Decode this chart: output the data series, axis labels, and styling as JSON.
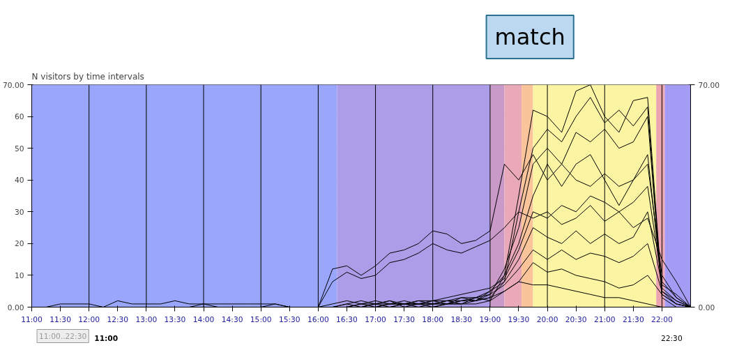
{
  "chart_data": {
    "type": "line",
    "title": "N visitors by time intervals",
    "annotations": [
      "match",
      "11:00..22:30",
      "11:00",
      "22:30"
    ],
    "x": [
      11,
      11.25,
      11.5,
      11.75,
      12,
      12.25,
      12.5,
      12.75,
      13,
      13.25,
      13.5,
      13.75,
      14,
      14.25,
      14.5,
      14.75,
      15,
      15.25,
      15.5,
      15.75,
      16,
      16.25,
      16.5,
      16.75,
      17,
      17.25,
      17.5,
      17.75,
      18,
      18.25,
      18.5,
      18.75,
      19,
      19.25,
      19.5,
      19.75,
      20,
      20.25,
      20.5,
      20.75,
      21,
      21.25,
      21.5,
      21.75,
      22,
      22.25,
      22.5
    ],
    "series": [
      {
        "color": "#000000",
        "values": [
          0,
          0,
          1,
          1,
          1,
          0,
          2,
          1,
          1,
          1,
          2,
          1,
          1,
          1,
          1,
          1,
          1,
          1,
          0,
          0,
          0,
          12,
          13,
          10,
          13,
          17,
          18,
          20,
          24,
          23,
          20,
          21,
          24,
          45,
          40,
          48,
          40,
          45,
          40,
          38,
          42,
          38,
          40,
          45,
          10,
          3,
          0
        ]
      },
      {
        "color": "#000000",
        "values": [
          0,
          0,
          0,
          0,
          0,
          0,
          0,
          0,
          0,
          0,
          0,
          0,
          1,
          0,
          0,
          0,
          0,
          0,
          0,
          0,
          0,
          8,
          11,
          9,
          10,
          14,
          15,
          17,
          20,
          18,
          17,
          19,
          21,
          25,
          30,
          28,
          30,
          26,
          28,
          32,
          27,
          30,
          25,
          28,
          15,
          8,
          0
        ]
      },
      {
        "color": "#000000",
        "values": [
          0,
          0,
          0,
          0,
          0,
          0,
          0,
          0,
          0,
          0,
          0,
          0,
          0,
          0,
          0,
          0,
          0,
          0,
          0,
          0,
          0,
          0,
          1,
          2,
          1,
          0,
          1,
          2,
          1,
          2,
          1,
          3,
          2,
          10,
          35,
          62,
          60,
          55,
          68,
          70,
          60,
          55,
          65,
          66,
          5,
          1,
          0
        ]
      },
      {
        "color": "#000000",
        "values": [
          0,
          0,
          0,
          0,
          0,
          0,
          0,
          0,
          0,
          0,
          0,
          0,
          0,
          0,
          0,
          0,
          0,
          0,
          0,
          0,
          0,
          0,
          0,
          1,
          2,
          1,
          1,
          0,
          1,
          1,
          2,
          2,
          3,
          8,
          30,
          50,
          56,
          52,
          60,
          66,
          58,
          62,
          57,
          63,
          4,
          1,
          0
        ]
      },
      {
        "color": "#000000",
        "values": [
          0,
          0,
          0,
          0,
          0,
          0,
          0,
          0,
          0,
          0,
          0,
          0,
          0,
          0,
          0,
          0,
          0,
          0,
          0,
          0,
          0,
          0,
          0,
          0,
          1,
          2,
          0,
          1,
          2,
          1,
          1,
          2,
          4,
          12,
          25,
          45,
          50,
          45,
          55,
          52,
          56,
          50,
          52,
          60,
          3,
          0,
          0
        ]
      },
      {
        "color": "#000000",
        "values": [
          0,
          0,
          0,
          0,
          0,
          0,
          0,
          0,
          0,
          0,
          0,
          0,
          0,
          0,
          0,
          0,
          0,
          0,
          0,
          0,
          0,
          0,
          1,
          0,
          1,
          1,
          2,
          1,
          0,
          1,
          3,
          2,
          5,
          10,
          20,
          35,
          45,
          38,
          45,
          48,
          40,
          32,
          40,
          48,
          6,
          2,
          0
        ]
      },
      {
        "color": "#000000",
        "values": [
          0,
          0,
          0,
          0,
          0,
          0,
          0,
          0,
          0,
          0,
          0,
          0,
          0,
          0,
          0,
          0,
          0,
          1,
          0,
          0,
          0,
          1,
          2,
          1,
          0,
          1,
          1,
          2,
          2,
          3,
          4,
          5,
          6,
          9,
          18,
          30,
          28,
          32,
          30,
          35,
          33,
          30,
          33,
          38,
          8,
          3,
          0
        ]
      },
      {
        "color": "#000000",
        "values": [
          0,
          0,
          0,
          0,
          0,
          0,
          0,
          0,
          0,
          0,
          0,
          0,
          0,
          0,
          0,
          0,
          0,
          0,
          0,
          0,
          0,
          0,
          0,
          1,
          1,
          2,
          1,
          1,
          1,
          2,
          2,
          3,
          5,
          8,
          15,
          25,
          22,
          20,
          24,
          20,
          23,
          20,
          22,
          30,
          7,
          4,
          0
        ]
      },
      {
        "color": "#000000",
        "values": [
          0,
          0,
          0,
          0,
          0,
          0,
          0,
          0,
          0,
          0,
          0,
          0,
          0,
          0,
          0,
          0,
          0,
          0,
          0,
          0,
          0,
          0,
          0,
          0,
          0,
          1,
          1,
          1,
          2,
          2,
          3,
          3,
          4,
          7,
          12,
          18,
          15,
          18,
          15,
          17,
          16,
          14,
          16,
          20,
          5,
          2,
          0
        ]
      },
      {
        "color": "#000000",
        "values": [
          0,
          0,
          0,
          0,
          0,
          0,
          0,
          0,
          0,
          0,
          0,
          0,
          0,
          0,
          0,
          0,
          0,
          0,
          0,
          0,
          0,
          0,
          0,
          0,
          0,
          0,
          1,
          1,
          1,
          1,
          2,
          2,
          3,
          5,
          8,
          14,
          11,
          12,
          10,
          9,
          8,
          6,
          7,
          10,
          4,
          1,
          0
        ]
      },
      {
        "color": "#000000",
        "values": [
          0,
          0,
          0,
          0,
          0,
          0,
          0,
          0,
          0,
          0,
          0,
          0,
          0,
          0,
          0,
          0,
          0,
          0,
          0,
          0,
          0,
          0,
          0,
          0,
          0,
          0,
          0,
          0,
          0,
          1,
          1,
          1,
          2,
          5,
          8,
          7,
          7,
          6,
          5,
          4,
          3,
          3,
          2,
          1,
          0,
          0,
          0
        ]
      }
    ],
    "xlim": [
      11,
      22.5
    ],
    "xticks": [
      {
        "value": 11,
        "label": "11:00"
      },
      {
        "value": 11.5,
        "label": "11:30"
      },
      {
        "value": 12,
        "label": "12:00"
      },
      {
        "value": 12.5,
        "label": "12:30"
      },
      {
        "value": 13,
        "label": "13:00"
      },
      {
        "value": 13.5,
        "label": "13:30"
      },
      {
        "value": 14,
        "label": "14:00"
      },
      {
        "value": 14.5,
        "label": "14:30"
      },
      {
        "value": 15,
        "label": "15:00"
      },
      {
        "value": 15.5,
        "label": "15:30"
      },
      {
        "value": 16,
        "label": "16:00"
      },
      {
        "value": 16.5,
        "label": "16:30"
      },
      {
        "value": 17,
        "label": "17:00"
      },
      {
        "value": 17.5,
        "label": "17:30"
      },
      {
        "value": 18,
        "label": "18:00"
      },
      {
        "value": 18.5,
        "label": "18:30"
      },
      {
        "value": 19,
        "label": "19:00"
      },
      {
        "value": 19.5,
        "label": "19:30"
      },
      {
        "value": 20,
        "label": "20:00"
      },
      {
        "value": 20.5,
        "label": "20:30"
      },
      {
        "value": 21,
        "label": "21:00"
      },
      {
        "value": 21.5,
        "label": "21:30"
      },
      {
        "value": 22,
        "label": "22:00"
      }
    ],
    "ylim": [
      0,
      70
    ],
    "yticks": [
      {
        "value": 0,
        "label": "0.00"
      },
      10,
      20,
      30,
      40,
      50,
      60,
      {
        "value": 70,
        "label": "70.00"
      }
    ],
    "y2lim": [
      0,
      70
    ],
    "y2ticks": [
      {
        "value": 0,
        "label": "0.00"
      },
      {
        "value": 70,
        "label": "70.00"
      }
    ],
    "grid": "y",
    "marker": "none",
    "line_style": "solid",
    "ref_lines": [
      {
        "axis": "x",
        "value": 12,
        "color": "#000000"
      },
      {
        "axis": "x",
        "value": 13,
        "color": "#000000"
      },
      {
        "axis": "x",
        "value": 14,
        "color": "#000000"
      },
      {
        "axis": "x",
        "value": 15,
        "color": "#000000"
      },
      {
        "axis": "x",
        "value": 16,
        "color": "#000000"
      },
      {
        "axis": "x",
        "value": 17,
        "color": "#000000"
      },
      {
        "axis": "x",
        "value": 18,
        "color": "#000000"
      },
      {
        "axis": "x",
        "value": 19,
        "color": "#000000"
      },
      {
        "axis": "x",
        "value": 20,
        "color": "#000000"
      },
      {
        "axis": "x",
        "value": 21,
        "color": "#000000"
      },
      {
        "axis": "x",
        "value": 22,
        "color": "#000000"
      }
    ],
    "bands": [
      {
        "axis": "x",
        "from": 11,
        "to": 16.33,
        "color": "#9aa6fc"
      },
      {
        "axis": "x",
        "from": 16.33,
        "to": 19.0,
        "color": "#ab9de8"
      },
      {
        "axis": "x",
        "from": 19.0,
        "to": 19.25,
        "color": "#c99ac8"
      },
      {
        "axis": "x",
        "from": 19.25,
        "to": 19.55,
        "color": "#e9a9b8"
      },
      {
        "axis": "x",
        "from": 19.55,
        "to": 19.75,
        "color": "#f9c49a"
      },
      {
        "axis": "x",
        "from": 19.75,
        "to": 21.9,
        "color": "#fbf5a3"
      },
      {
        "axis": "x",
        "from": 21.9,
        "to": 22.05,
        "color": "#eba4b0"
      },
      {
        "axis": "x",
        "from": 22.05,
        "to": 22.5,
        "color": "#a49cf4"
      }
    ]
  }
}
